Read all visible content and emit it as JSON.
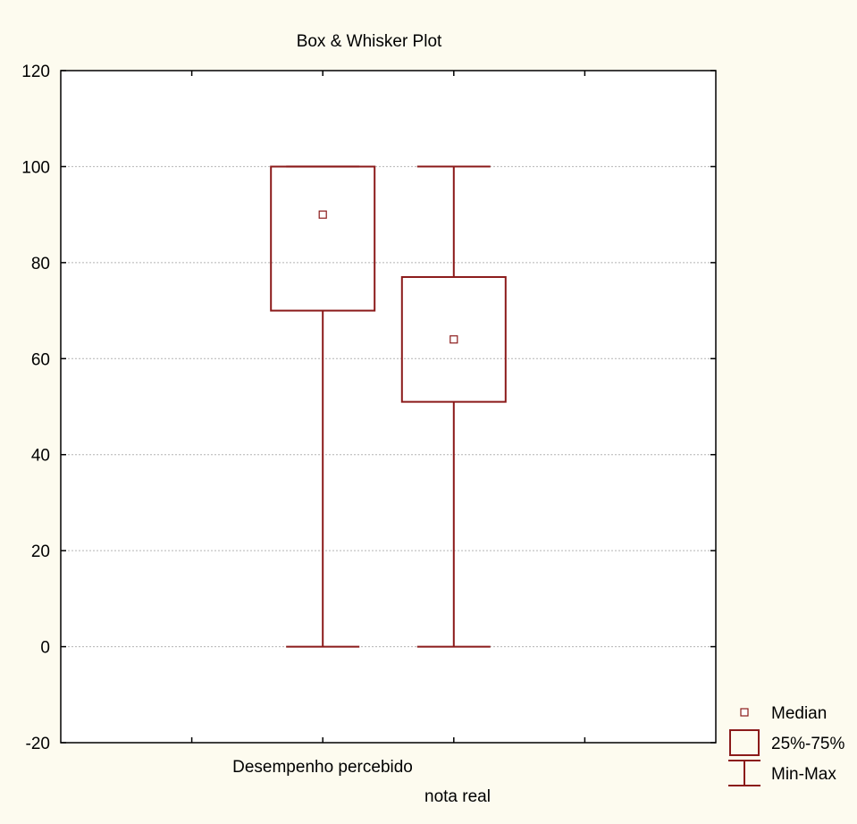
{
  "chart_data": {
    "type": "boxplot",
    "title": "Box & Whisker Plot",
    "xlabel": "",
    "ylabel": "",
    "ylim": [
      -20,
      120
    ],
    "yticks": [
      -20,
      0,
      20,
      40,
      60,
      80,
      100,
      120
    ],
    "grid": true,
    "legend_position": "bottom-right",
    "categories": [
      "Desempenho percebido",
      "nota real"
    ],
    "series": [
      {
        "name": "Desempenho percebido",
        "min": 0,
        "q1": 70,
        "median": 90,
        "q3": 100,
        "max": 100
      },
      {
        "name": "nota real",
        "min": 0,
        "q1": 51,
        "median": 64,
        "q3": 77,
        "max": 100
      }
    ],
    "legend": [
      {
        "symbol": "median",
        "label": "Median"
      },
      {
        "symbol": "box",
        "label": "25%-75%"
      },
      {
        "symbol": "whisker",
        "label": "Min-Max"
      }
    ],
    "colors": {
      "series": "#8b1a1a",
      "background": "#fdfbef",
      "plot_bg": "#ffffff",
      "grid": "#b4b4b4"
    }
  }
}
